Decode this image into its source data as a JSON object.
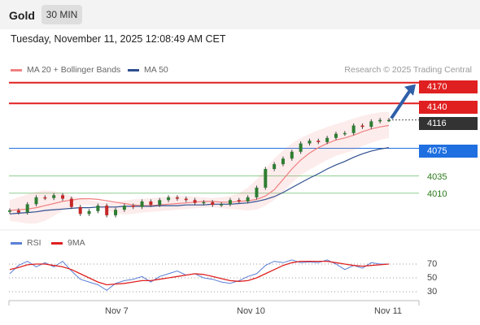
{
  "header": {
    "asset": "Gold",
    "timeframe": "30 MIN"
  },
  "datetime": "Tuesday, November 11, 2025 12:08:49 AM CET",
  "legend": {
    "items": [
      {
        "label": "MA 20 + Bollinger Bands",
        "color": "#f08080"
      },
      {
        "label": "MA 50",
        "color": "#2f4f8f"
      }
    ],
    "credit": "Research © 2025 Trading Central"
  },
  "levels": [
    {
      "label": "4170",
      "value": 4170,
      "style": "red"
    },
    {
      "label": "4140",
      "value": 4140,
      "style": "red"
    },
    {
      "label": "4116",
      "value": 4116,
      "style": "dark"
    },
    {
      "label": "4075",
      "value": 4075,
      "style": "blue"
    },
    {
      "label": "4035",
      "value": 4035,
      "style": "green"
    },
    {
      "label": "4010",
      "value": 4010,
      "style": "green"
    }
  ],
  "rsi_legend": {
    "items": [
      {
        "label": "RSI",
        "color": "#5b7fd6"
      },
      {
        "label": "9MA",
        "color": "#e02020"
      }
    ]
  },
  "chart_data": [
    {
      "type": "line",
      "title": "",
      "x_ticks": [
        "Nov 7",
        "Nov 10",
        "Nov 11"
      ],
      "ylim": [
        3980,
        4180
      ],
      "series": [
        {
          "name": "MA 20 + Bollinger Bands",
          "values": [
            3985,
            3986,
            3987,
            3989,
            3992,
            3995,
            3998,
            4000,
            4002,
            4002,
            4001,
            3999,
            3997,
            3995,
            3993,
            3992,
            3992,
            3993,
            3994,
            3995,
            3996,
            3997,
            3998,
            3998,
            3997,
            3997,
            3998,
            3999,
            4001,
            4006,
            4015,
            4030,
            4045,
            4058,
            4068,
            4076,
            4082,
            4087,
            4090,
            4094,
            4099,
            4103,
            4106,
            4108
          ]
        },
        {
          "name": "MA 50",
          "values": [
            3980,
            3981,
            3982,
            3983,
            3985,
            3986,
            3987,
            3988,
            3989,
            3989,
            3990,
            3990,
            3990,
            3991,
            3991,
            3991,
            3991,
            3992,
            3992,
            3992,
            3993,
            3993,
            3993,
            3994,
            3994,
            3994,
            3995,
            3996,
            3998,
            4001,
            4005,
            4011,
            4018,
            4025,
            4032,
            4038,
            4045,
            4051,
            4056,
            4062,
            4067,
            4071,
            4074,
            4076
          ]
        }
      ],
      "close": [
        3985,
        3982,
        3994,
        4004,
        4003,
        4007,
        4002,
        3990,
        3980,
        3984,
        3992,
        3978,
        3986,
        3992,
        3990,
        3998,
        3993,
        4000,
        4004,
        4002,
        4000,
        3996,
        3997,
        3993,
        3994,
        4000,
        3998,
        4004,
        4018,
        4045,
        4052,
        4060,
        4070,
        4082,
        4086,
        4084,
        4090,
        4096,
        4097,
        4108,
        4106,
        4114,
        4116,
        4116
      ],
      "bands": {
        "upper": [
          4000,
          4004,
          4008,
          4012,
          4014,
          4013,
          4010,
          4006,
          4002,
          4000,
          3998,
          3996,
          3997,
          3999,
          4001,
          4002,
          4003,
          4004,
          4005,
          4006,
          4006,
          4005,
          4004,
          4003,
          4004,
          4006,
          4010,
          4018,
          4030,
          4045,
          4060,
          4072,
          4082,
          4090,
          4096,
          4101,
          4106,
          4110,
          4114,
          4118,
          4122,
          4125,
          4127,
          4128
        ],
        "lower": [
          3970,
          3968,
          3966,
          3966,
          3970,
          3977,
          3985,
          3991,
          3993,
          3993,
          3990,
          3985,
          3981,
          3979,
          3980,
          3982,
          3983,
          3984,
          3985,
          3986,
          3987,
          3988,
          3989,
          3990,
          3988,
          3987,
          3986,
          3985,
          3986,
          3992,
          4000,
          4012,
          4025,
          4036,
          4044,
          4051,
          4058,
          4064,
          4068,
          4072,
          4078,
          4083,
          4087,
          4090
        ]
      },
      "forecast": {
        "from": 4116,
        "to": 4170
      }
    },
    {
      "type": "line",
      "title": "",
      "yticks": [
        70,
        50,
        30
      ],
      "ylim": [
        20,
        85
      ],
      "series": [
        {
          "name": "RSI",
          "values": [
            56,
            68,
            74,
            66,
            72,
            66,
            74,
            60,
            48,
            44,
            40,
            32,
            42,
            46,
            48,
            52,
            44,
            52,
            56,
            60,
            54,
            56,
            50,
            48,
            44,
            42,
            46,
            52,
            56,
            68,
            74,
            72,
            76,
            72,
            73,
            72,
            76,
            70,
            62,
            68,
            64,
            72,
            70,
            70
          ]
        },
        {
          "name": "9MA",
          "values": [
            62,
            65,
            69,
            70,
            70,
            68,
            66,
            62,
            56,
            50,
            44,
            40,
            41,
            42,
            44,
            46,
            46,
            48,
            50,
            52,
            54,
            56,
            55,
            52,
            49,
            46,
            45,
            46,
            50,
            56,
            62,
            68,
            72,
            74,
            74,
            74,
            74,
            72,
            70,
            68,
            67,
            68,
            69,
            70
          ]
        }
      ]
    }
  ]
}
